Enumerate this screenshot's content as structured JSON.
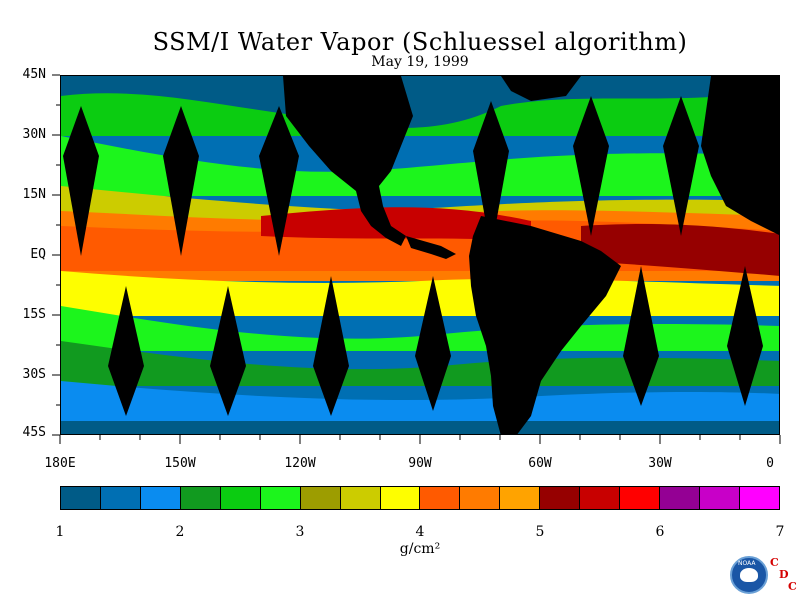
{
  "title": "SSM/I Water Vapor (Schluessel algorithm)",
  "date": "May 19, 1999",
  "latitude_labels": [
    "45N",
    "30N",
    "15N",
    "EQ",
    "15S",
    "30S",
    "45S"
  ],
  "longitude_labels": [
    "180E",
    "150W",
    "120W",
    "90W",
    "60W",
    "30W",
    "0"
  ],
  "colorbar": {
    "colors": [
      "#005b87",
      "#006fb3",
      "#0a8cf0",
      "#119a1f",
      "#0bcc11",
      "#1cf51c",
      "#9d9d00",
      "#cccc00",
      "#fefe00",
      "#ff5a00",
      "#ff7b00",
      "#ffa300",
      "#960000",
      "#c80000",
      "#ff0000",
      "#940094",
      "#c800c8",
      "#ff00ff"
    ],
    "tick_labels": [
      "1",
      "2",
      "3",
      "4",
      "5",
      "6",
      "7"
    ],
    "units": "g/cm²"
  },
  "logo": {
    "noaa_text": "NOAA",
    "cdc_letters": [
      "C",
      "D",
      "C"
    ]
  },
  "map_palette": {
    "ocean_base": "#0a7cd8",
    "land": "#000000"
  }
}
